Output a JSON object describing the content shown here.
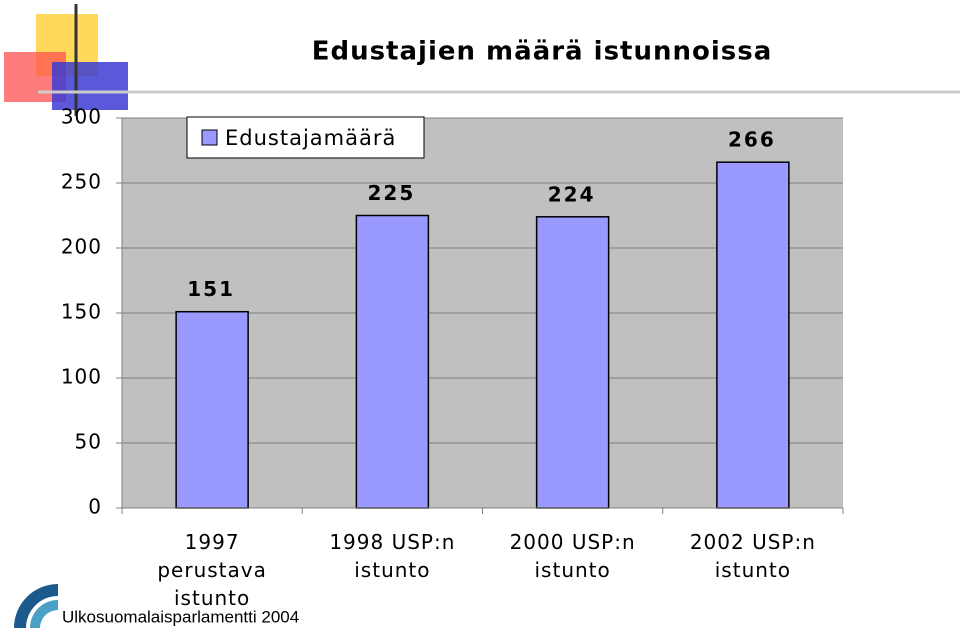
{
  "chart_data": {
    "type": "bar",
    "title": "Edustajien määrä istunnoissa",
    "categories": [
      "1997 perustava istunto",
      "1998 USP:n istunto",
      "2000 USP:n istunto",
      "2002 USP:n istunto"
    ],
    "series": [
      {
        "name": "Edustajamäärä",
        "color": "#9999ff",
        "values": [
          151,
          225,
          224,
          266
        ]
      }
    ],
    "ylim": [
      0,
      300
    ],
    "yticks": [
      0,
      50,
      100,
      150,
      200,
      250,
      300
    ],
    "grid": true,
    "footer": "Ulkosuomalaisparlamentti 2004"
  }
}
